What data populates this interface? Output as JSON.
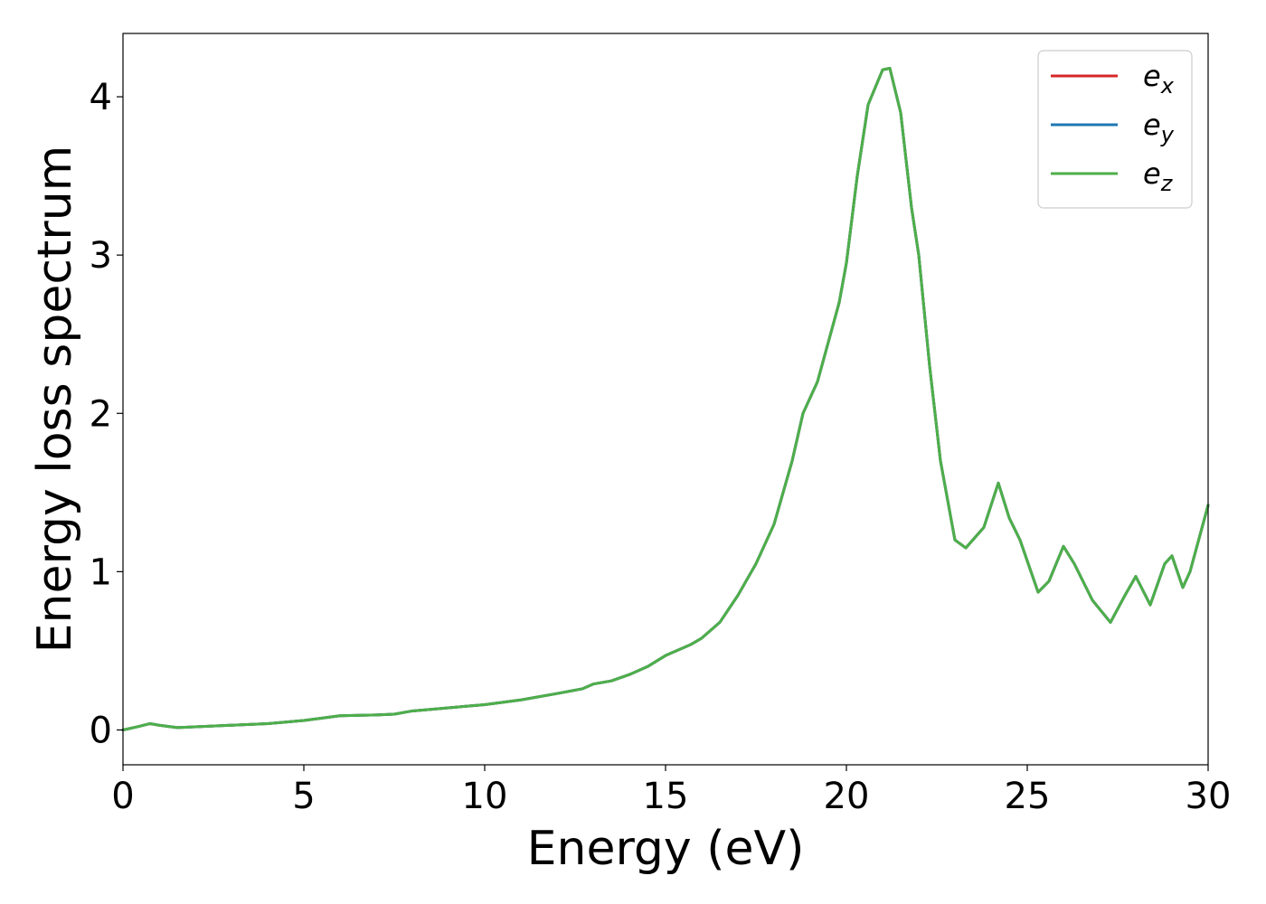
{
  "chart_data": {
    "type": "line",
    "xlabel": "Energy (eV)",
    "ylabel": "Energy loss spectrum",
    "xlim": [
      0,
      30
    ],
    "ylim": [
      -0.22,
      4.4
    ],
    "xticks": [
      0,
      5,
      10,
      15,
      20,
      25,
      30
    ],
    "yticks": [
      0,
      1,
      2,
      3,
      4
    ],
    "grid": false,
    "legend_position": "top-right",
    "series": [
      {
        "name": "e_x",
        "label_base": "e",
        "label_sub": "x",
        "color": "#d62728",
        "x": [
          0,
          0.4,
          0.75,
          1.0,
          1.5,
          2,
          3,
          4,
          5,
          5.5,
          6,
          7,
          7.5,
          8,
          9,
          10,
          11,
          12,
          12.7,
          13,
          13.5,
          14,
          14.5,
          15,
          15.7,
          16,
          16.5,
          17,
          17.5,
          18,
          18.5,
          18.8,
          19.2,
          19.5,
          19.8,
          20,
          20.3,
          20.6,
          21.0,
          21.2,
          21.5,
          21.8,
          22.0,
          22.3,
          22.6,
          23.0,
          23.3,
          23.8,
          24.2,
          24.5,
          24.8,
          25.3,
          25.6,
          26.0,
          26.3,
          26.8,
          27.3,
          27.7,
          28.0,
          28.4,
          28.8,
          29.0,
          29.3,
          29.5,
          30.0
        ],
        "y": [
          0,
          0.02,
          0.04,
          0.03,
          0.015,
          0.02,
          0.03,
          0.04,
          0.06,
          0.075,
          0.09,
          0.095,
          0.1,
          0.12,
          0.14,
          0.16,
          0.19,
          0.23,
          0.26,
          0.29,
          0.31,
          0.35,
          0.4,
          0.47,
          0.54,
          0.58,
          0.68,
          0.85,
          1.05,
          1.3,
          1.7,
          2.0,
          2.2,
          2.45,
          2.7,
          2.95,
          3.5,
          3.95,
          4.17,
          4.18,
          3.9,
          3.3,
          3.0,
          2.3,
          1.7,
          1.2,
          1.15,
          1.28,
          1.56,
          1.34,
          1.2,
          0.87,
          0.94,
          1.16,
          1.05,
          0.82,
          0.68,
          0.85,
          0.97,
          0.79,
          1.05,
          1.1,
          0.9,
          1.0,
          1.42
        ]
      },
      {
        "name": "e_y",
        "label_base": "e",
        "label_sub": "y",
        "color": "#1f77b4",
        "x": [
          0,
          0.4,
          0.75,
          1.0,
          1.5,
          2,
          3,
          4,
          5,
          5.5,
          6,
          7,
          7.5,
          8,
          9,
          10,
          11,
          12,
          12.7,
          13,
          13.5,
          14,
          14.5,
          15,
          15.7,
          16,
          16.5,
          17,
          17.5,
          18,
          18.5,
          18.8,
          19.2,
          19.5,
          19.8,
          20,
          20.3,
          20.6,
          21.0,
          21.2,
          21.5,
          21.8,
          22.0,
          22.3,
          22.6,
          23.0,
          23.3,
          23.8,
          24.2,
          24.5,
          24.8,
          25.3,
          25.6,
          26.0,
          26.3,
          26.8,
          27.3,
          27.7,
          28.0,
          28.4,
          28.8,
          29.0,
          29.3,
          29.5,
          30.0
        ],
        "y": [
          0,
          0.02,
          0.04,
          0.03,
          0.015,
          0.02,
          0.03,
          0.04,
          0.06,
          0.075,
          0.09,
          0.095,
          0.1,
          0.12,
          0.14,
          0.16,
          0.19,
          0.23,
          0.26,
          0.29,
          0.31,
          0.35,
          0.4,
          0.47,
          0.54,
          0.58,
          0.68,
          0.85,
          1.05,
          1.3,
          1.7,
          2.0,
          2.2,
          2.45,
          2.7,
          2.95,
          3.5,
          3.95,
          4.17,
          4.18,
          3.9,
          3.3,
          3.0,
          2.3,
          1.7,
          1.2,
          1.15,
          1.28,
          1.56,
          1.34,
          1.2,
          0.87,
          0.94,
          1.16,
          1.05,
          0.82,
          0.68,
          0.85,
          0.97,
          0.79,
          1.05,
          1.1,
          0.9,
          1.0,
          1.42
        ]
      },
      {
        "name": "e_z",
        "label_base": "e",
        "label_sub": "z",
        "color": "#4daf4a",
        "x": [
          0,
          0.4,
          0.75,
          1.0,
          1.5,
          2,
          3,
          4,
          5,
          5.5,
          6,
          7,
          7.5,
          8,
          9,
          10,
          11,
          12,
          12.7,
          13,
          13.5,
          14,
          14.5,
          15,
          15.7,
          16,
          16.5,
          17,
          17.5,
          18,
          18.5,
          18.8,
          19.2,
          19.5,
          19.8,
          20,
          20.3,
          20.6,
          21.0,
          21.2,
          21.5,
          21.8,
          22.0,
          22.3,
          22.6,
          23.0,
          23.3,
          23.8,
          24.2,
          24.5,
          24.8,
          25.3,
          25.6,
          26.0,
          26.3,
          26.8,
          27.3,
          27.7,
          28.0,
          28.4,
          28.8,
          29.0,
          29.3,
          29.5,
          30.0
        ],
        "y": [
          0,
          0.02,
          0.04,
          0.03,
          0.015,
          0.02,
          0.03,
          0.04,
          0.06,
          0.075,
          0.09,
          0.095,
          0.1,
          0.12,
          0.14,
          0.16,
          0.19,
          0.23,
          0.26,
          0.29,
          0.31,
          0.35,
          0.4,
          0.47,
          0.54,
          0.58,
          0.68,
          0.85,
          1.05,
          1.3,
          1.7,
          2.0,
          2.2,
          2.45,
          2.7,
          2.95,
          3.5,
          3.95,
          4.17,
          4.18,
          3.9,
          3.3,
          3.0,
          2.3,
          1.7,
          1.2,
          1.15,
          1.28,
          1.56,
          1.34,
          1.2,
          0.87,
          0.94,
          1.16,
          1.05,
          0.82,
          0.68,
          0.85,
          0.97,
          0.79,
          1.05,
          1.1,
          0.9,
          1.0,
          1.42
        ]
      }
    ]
  }
}
